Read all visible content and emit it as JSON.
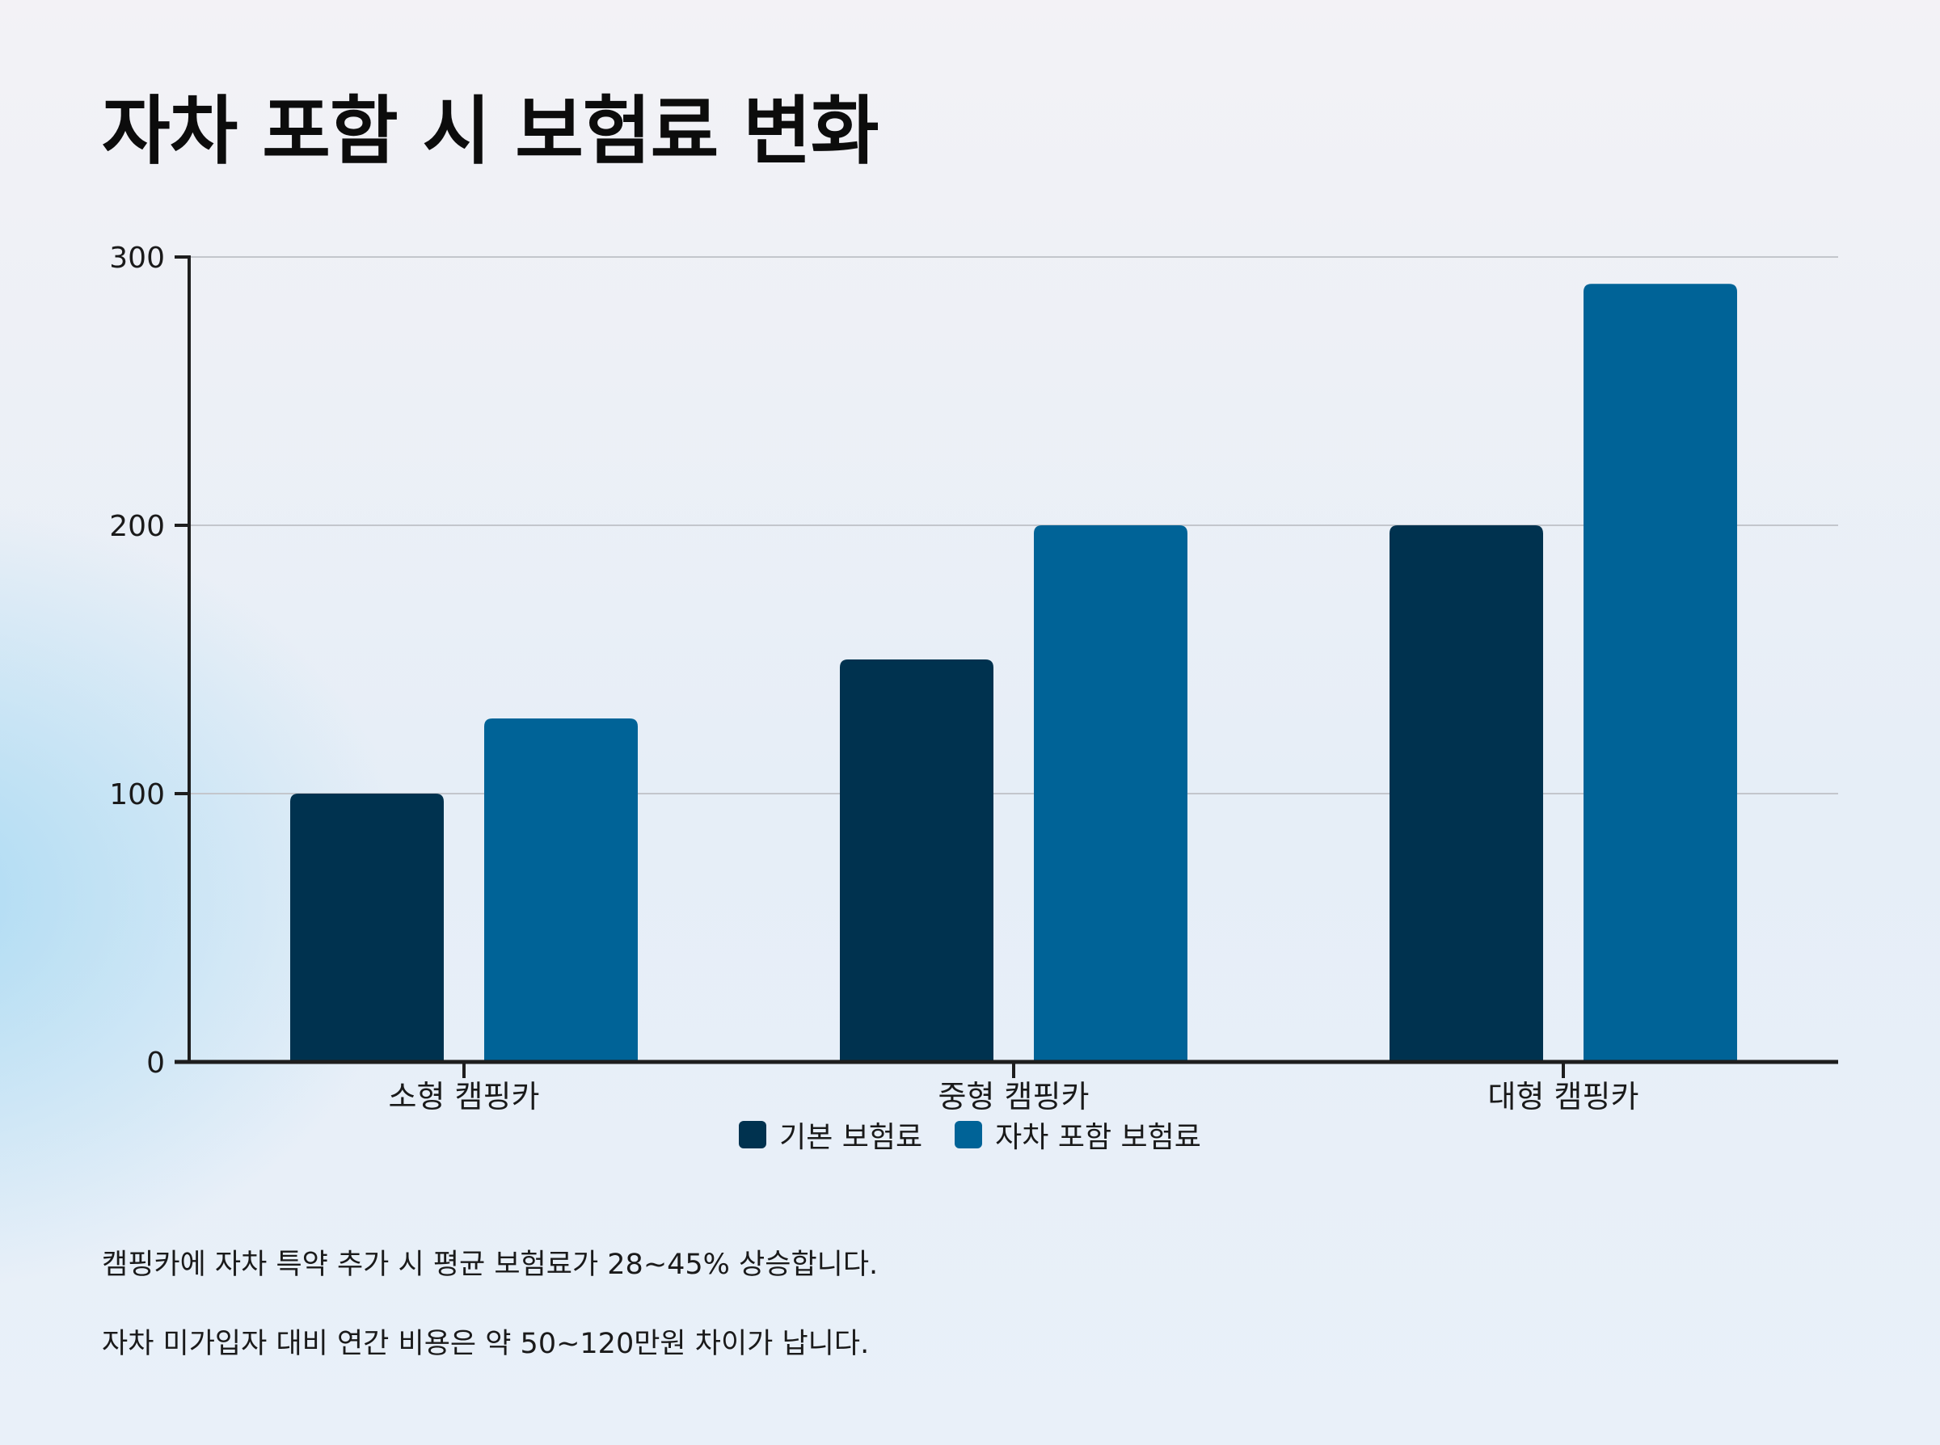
{
  "title": "자차 포함 시 보험료 변화",
  "chart_data": {
    "type": "bar",
    "categories": [
      "소형 캠핑카",
      "중형 캠핑카",
      "대형 캠핑카"
    ],
    "series": [
      {
        "name": "기본 보험료",
        "values": [
          100,
          150,
          200
        ],
        "color": "#00324f"
      },
      {
        "name": "자차 포함 보험료",
        "values": [
          128,
          200,
          290
        ],
        "color": "#006397"
      }
    ],
    "ylim": [
      0,
      300
    ],
    "yticks": [
      0,
      100,
      200,
      300
    ],
    "grid": true,
    "legend_position": "bottom"
  },
  "notes": [
    "캠핑카에 자차 특약 추가 시 평균 보험료가 28~45% 상승합니다.",
    "자차 미가입자 대비 연간 비용은 약 50~120만원 차이가 납니다."
  ]
}
